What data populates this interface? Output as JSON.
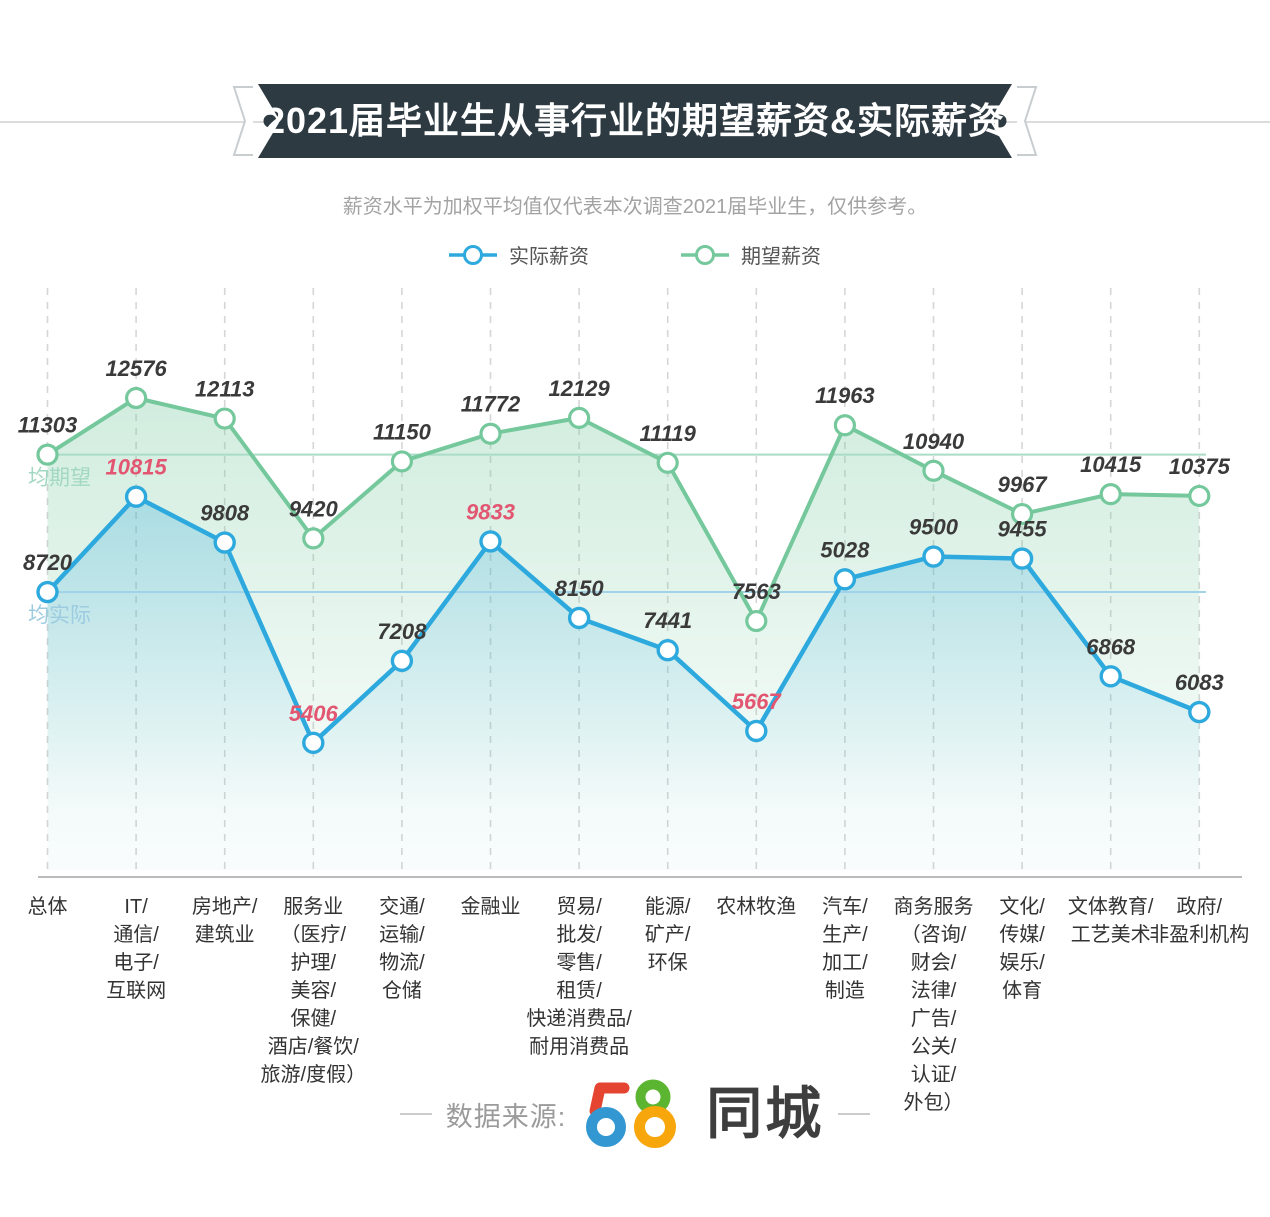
{
  "page": {
    "title": "2021届毕业生从事行业的期望薪资&实际薪资",
    "subtitle": "薪资水平为加权平均值仅代表本次调查2021届毕业生，仅供参考。"
  },
  "legend": [
    {
      "label": "实际薪资",
      "color": "#2da9de"
    },
    {
      "label": "期望薪资",
      "color": "#74c89c"
    }
  ],
  "colors": {
    "actual_line": "#2da9de",
    "expected_line": "#74c89c",
    "highlight_label": "#e25672",
    "value_label": "#3a3a3a",
    "ribbon": "#2d3a41",
    "grid": "#d6d6d6",
    "axis": "#bbbbbb",
    "avg_expected_line": "#aadcc8",
    "avg_actual_line": "#a0d3e8",
    "avg_expected_label": "#a2d8c2",
    "avg_actual_label": "#9dcbe0"
  },
  "ref_lines": [
    {
      "key": "expected_avg",
      "label": "均期望",
      "value": 11303
    },
    {
      "key": "actual_avg",
      "label": "均实际",
      "value": 8720
    }
  ],
  "footer": {
    "source_label": "数据来源:",
    "logo_58": "58",
    "logo_city": "同城"
  },
  "chart_data": {
    "type": "line",
    "title": "2021届毕业生从事行业的期望薪资&实际薪资",
    "legend_position": "top",
    "grid": "vertical-dashed",
    "categories": [
      [
        "总体"
      ],
      [
        "IT/",
        "通信/",
        "电子/",
        "互联网"
      ],
      [
        "房地产/",
        "建筑业"
      ],
      [
        "服务业",
        "（医疗/",
        "护理/",
        "美容/",
        "保健/",
        "酒店/餐饮/",
        "旅游/度假）"
      ],
      [
        "交通/",
        "运输/",
        "物流/",
        "仓储"
      ],
      [
        "金融业"
      ],
      [
        "贸易/",
        "批发/",
        "零售/",
        "租赁/",
        "快递消费品/",
        "耐用消费品"
      ],
      [
        "能源/",
        "矿产/",
        "环保"
      ],
      [
        "农林牧渔"
      ],
      [
        "汽车/",
        "生产/",
        "加工/",
        "制造"
      ],
      [
        "商务服务",
        "（咨询/",
        "财会/",
        "法律/",
        "广告/",
        "公关/",
        "认证/",
        "外包）"
      ],
      [
        "文化/",
        "传媒/",
        "娱乐/",
        "体育"
      ],
      [
        "文体教育/",
        "工艺美术"
      ],
      [
        "政府/",
        "非盈利机构"
      ]
    ],
    "series": [
      {
        "name": "期望薪资",
        "color": "#74c89c",
        "values": [
          11303,
          12576,
          12113,
          9420,
          11150,
          11772,
          12129,
          11119,
          7563,
          11963,
          10940,
          9967,
          10415,
          10375
        ]
      },
      {
        "name": "实际薪资",
        "color": "#2da9de",
        "values": [
          8720,
          10815,
          9808,
          5406,
          7208,
          9833,
          8150,
          7441,
          5667,
          5028,
          9500,
          9455,
          6868,
          6083
        ],
        "highlight_label_indices": [
          1,
          3,
          5,
          8
        ],
        "plot_override": {
          "9": 9000
        }
      }
    ]
  }
}
